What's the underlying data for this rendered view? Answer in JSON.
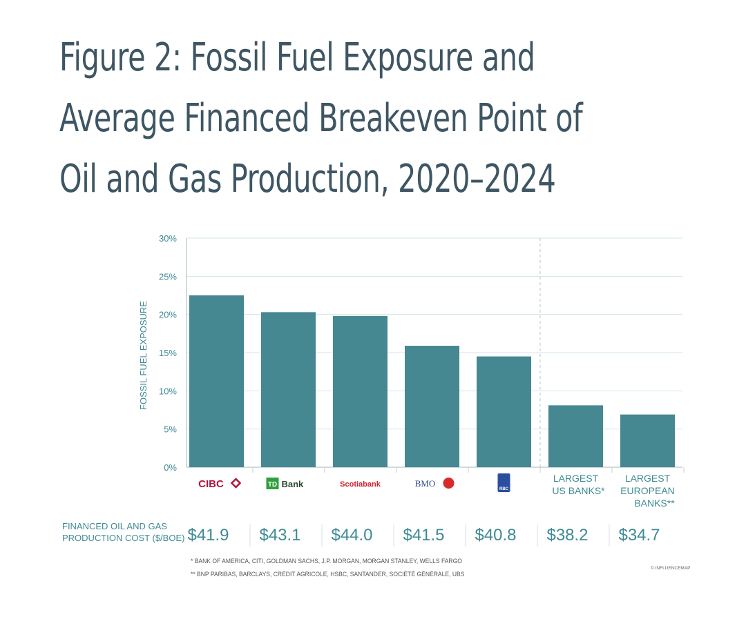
{
  "title_lines": [
    "Figure 2: Fossil Fuel Exposure and",
    "Average Financed Breakeven Point of",
    "Oil and Gas Production, 2020–2024"
  ],
  "cost_label_lines": [
    "FINANCED OIL AND GAS",
    "PRODUCTION COST ($/BOE)"
  ],
  "footnotes": [
    "* BANK OF AMERICA, CITI, GOLDMAN SACHS, J.P. MORGAN, MORGAN STANLEY, WELLS FARGO",
    "** BNP PARIBAS, BARCLAYS, CRÉDIT AGRICOLE, HSBC, SANTANDER, SOCIÉTÉ GÉNÉRALE, UBS"
  ],
  "copyright": "© INFLUENCEMAP",
  "colors": {
    "bar": "#458891",
    "accent": "#3e8a93",
    "title": "#3e5663",
    "grid": "#cfe4e8"
  },
  "chart_data": {
    "type": "bar",
    "ylabel": "FOSSIL FUEL EXPOSURE",
    "ylim": [
      0,
      30
    ],
    "yticks": [
      "0%",
      "5%",
      "10%",
      "15%",
      "20%",
      "25%",
      "30%"
    ],
    "grid": true,
    "categories": [
      "CIBC",
      "TD Bank",
      "Scotiabank",
      "BMO",
      "RBC",
      "LARGEST US BANKS*",
      "LARGEST EUROPEAN BANKS**"
    ],
    "category_label_lines": [
      [
        "CIBC"
      ],
      [
        "TD",
        "Bank"
      ],
      [
        "Scotiabank"
      ],
      [
        "BMO"
      ],
      [
        "RBC"
      ],
      [
        "LARGEST",
        "US BANKS*"
      ],
      [
        "LARGEST",
        "EUROPEAN",
        "BANKS**"
      ]
    ],
    "values": [
      22.5,
      20.3,
      19.8,
      15.9,
      14.5,
      8.1,
      6.9
    ],
    "cost_labels": [
      "$41.9",
      "$43.1",
      "$44.0",
      "$41.5",
      "$40.8",
      "$38.2",
      "$34.7"
    ],
    "costs": [
      41.9,
      43.1,
      44.0,
      41.5,
      40.8,
      38.2,
      34.7
    ]
  }
}
